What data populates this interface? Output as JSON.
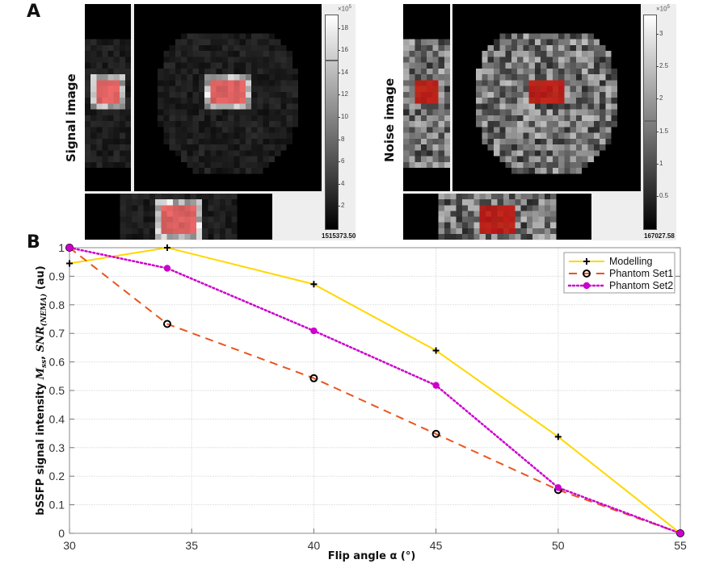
{
  "panel_a": {
    "letter": "A",
    "signal": {
      "label": "Signal image",
      "colorbar": {
        "exponent_label": "×10",
        "exponent_power": "5",
        "ticks": [
          "18",
          "16",
          "14",
          "12",
          "10",
          "8",
          "6",
          "4",
          "2"
        ],
        "tick_values": [
          18,
          16,
          14,
          12,
          10,
          8,
          6,
          4,
          2
        ],
        "range": [
          0,
          19.2
        ],
        "marker_value": 15.15,
        "value_readout": "1515373.50"
      },
      "roi_color": "#f06a6a"
    },
    "noise": {
      "label": "Noise image",
      "colorbar": {
        "exponent_label": "×10",
        "exponent_power": "5",
        "ticks": [
          "3",
          "2.5",
          "2",
          "1.5",
          "1",
          "0.5"
        ],
        "tick_values": [
          3,
          2.5,
          2,
          1.5,
          1,
          0.5
        ],
        "range": [
          0,
          3.3
        ],
        "marker_value": 1.67,
        "value_readout": "167027.58"
      },
      "roi_color": "#c8191c"
    }
  },
  "panel_b": {
    "letter": "B"
  },
  "chart_data": {
    "type": "line",
    "title": "",
    "xlabel": "Flip angle α (°)",
    "ylabel_parts": [
      "bSSFP signal intensity ",
      "M",
      "ss",
      ", ",
      "SNR",
      "(NEMA)",
      " (au)"
    ],
    "xlim": [
      30,
      55
    ],
    "ylim": [
      0,
      1
    ],
    "xticks": [
      30,
      35,
      40,
      45,
      50,
      55
    ],
    "xtick_labels": [
      "30",
      "35",
      "40",
      "45",
      "50",
      "55"
    ],
    "yticks": [
      0,
      0.1,
      0.2,
      0.3,
      0.4,
      0.5,
      0.6,
      0.7,
      0.8,
      0.9,
      1
    ],
    "ytick_labels": [
      "0",
      "0.1",
      "0.2",
      "0.3",
      "0.4",
      "0.5",
      "0.6",
      "0.7",
      "0.8",
      "0.9",
      "1"
    ],
    "grid": true,
    "legend_position": "top-right",
    "series": [
      {
        "name": "Modelling",
        "color": "#ffd700",
        "line_style": "solid",
        "marker": "plus",
        "marker_color": "#000000",
        "x": [
          30,
          34,
          40,
          45,
          50,
          55
        ],
        "y": [
          0.945,
          1.0,
          0.872,
          0.64,
          0.338,
          0.0
        ]
      },
      {
        "name": "Phantom Set1",
        "color": "#e8561e",
        "line_style": "dashed",
        "marker": "open-circle",
        "marker_color": "#000000",
        "x": [
          30,
          34,
          40,
          45,
          50,
          55
        ],
        "y": [
          1.0,
          0.733,
          0.543,
          0.348,
          0.152,
          0.0
        ]
      },
      {
        "name": "Phantom Set2",
        "color": "#cc00cc",
        "line_style": "dotted",
        "marker": "filled-circle",
        "marker_color": "#cc00cc",
        "x": [
          30,
          34,
          40,
          45,
          50,
          55
        ],
        "y": [
          1.0,
          0.928,
          0.709,
          0.518,
          0.16,
          0.0
        ]
      }
    ]
  }
}
